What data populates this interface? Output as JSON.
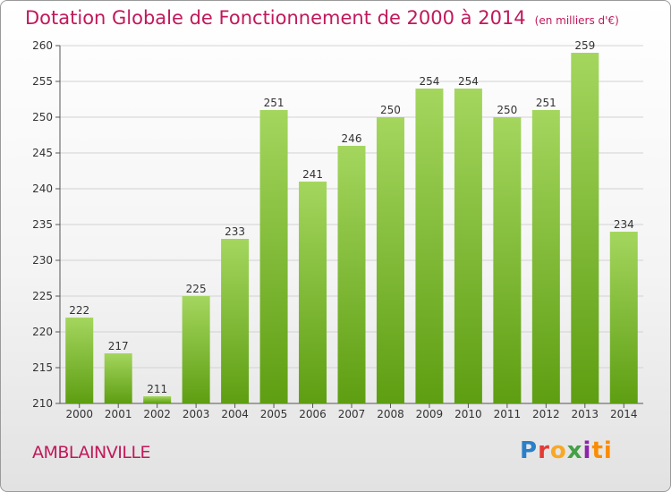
{
  "title": "Dotation Globale de Fonctionnement de 2000 à 2014",
  "unit_note": "(en milliers d'€)",
  "place": "AMBLAINVILLE",
  "logo": {
    "letters": [
      "P",
      "r",
      "o",
      "x",
      "i",
      "t",
      "i"
    ]
  },
  "colors": {
    "title": "#c2185b",
    "bar_top": "#a4d65e",
    "bar_bottom": "#5e9e12"
  },
  "chart_data": {
    "type": "bar",
    "title": "Dotation Globale de Fonctionnement de 2000 à 2014",
    "categories": [
      "2000",
      "2001",
      "2002",
      "2003",
      "2004",
      "2005",
      "2006",
      "2007",
      "2008",
      "2009",
      "2010",
      "2011",
      "2012",
      "2013",
      "2014"
    ],
    "values": [
      222,
      217,
      211,
      225,
      233,
      251,
      241,
      246,
      250,
      254,
      254,
      250,
      251,
      259,
      234
    ],
    "ylim": [
      210,
      260
    ],
    "yticks": [
      210,
      215,
      220,
      225,
      230,
      235,
      240,
      245,
      250,
      255,
      260
    ],
    "grid": true,
    "data_labels": true
  }
}
